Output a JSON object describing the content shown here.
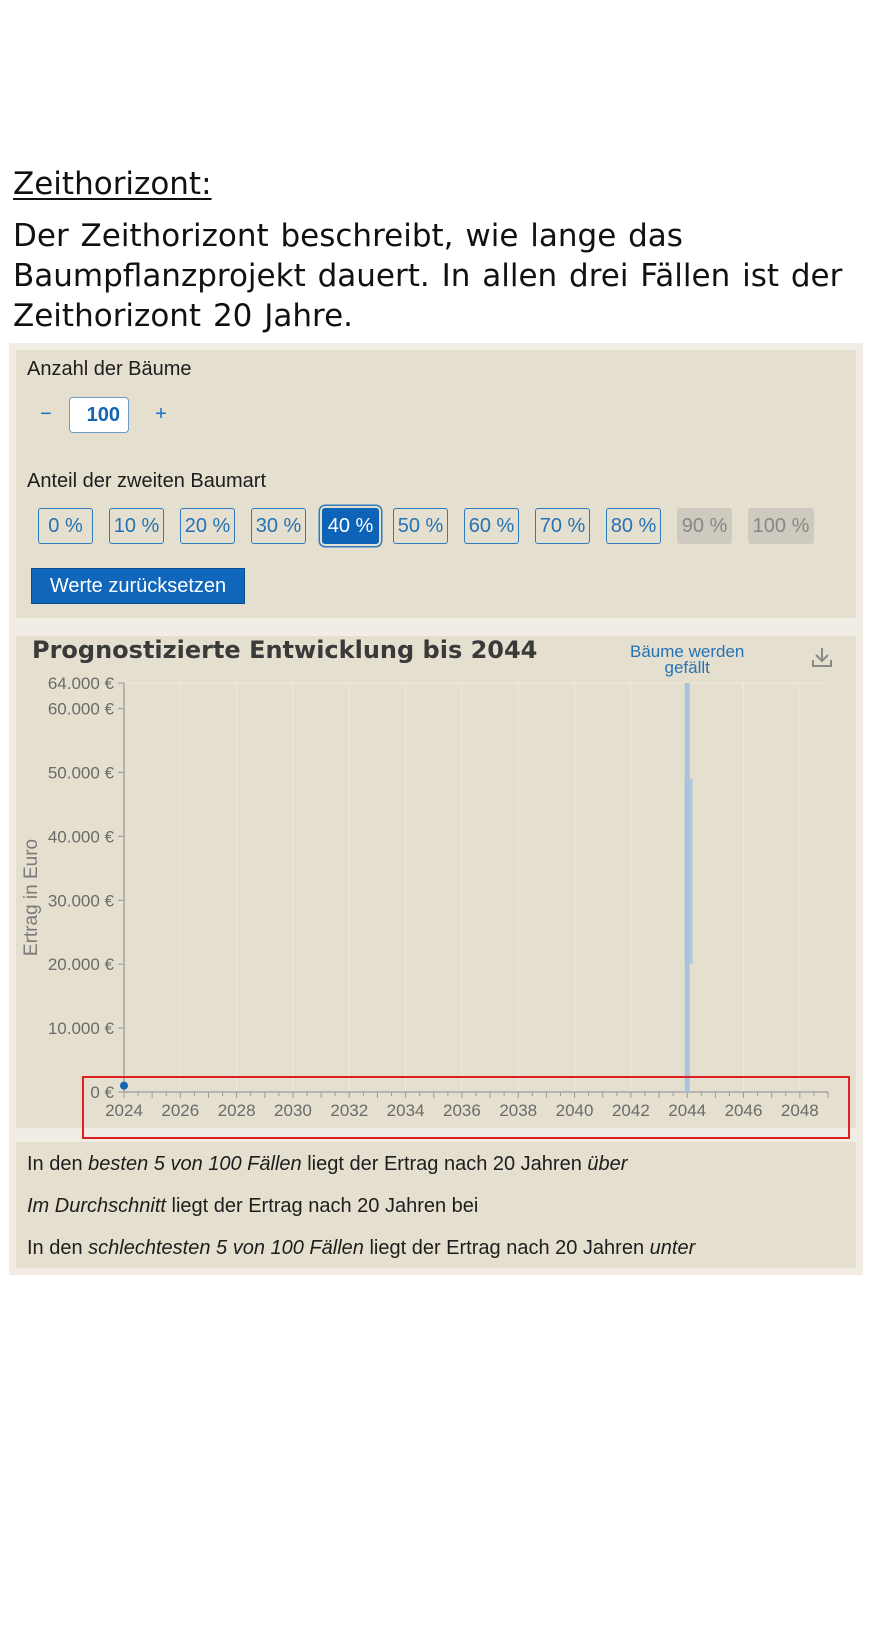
{
  "heading": "Zeithorizont:",
  "intro": "Der Zeithorizont beschreibt, wie lange das Baumpflanzprojekt dauert. In allen drei Fällen ist der Zeithorizont 20 Jahre.",
  "trees": {
    "label": "Anzahl der Bäume",
    "minus": "−",
    "plus": "+",
    "value": "100"
  },
  "share": {
    "label": "Anteil der zweiten Baumart",
    "options": [
      "0 %",
      "10 %",
      "20 %",
      "30 %",
      "40 %",
      "50 %",
      "60 %",
      "70 %",
      "80 %",
      "90 %",
      "100 %"
    ],
    "selected": "40 %",
    "disabled": [
      "90 %",
      "100 %"
    ]
  },
  "reset_label": "Werte zurücksetzen",
  "chart_data": {
    "type": "line",
    "title": "Prognostizierte Entwicklung bis 2044",
    "ylabel": "Ertrag in Euro",
    "xlabel": "",
    "xlim": [
      2024,
      2049
    ],
    "ylim": [
      0,
      64000
    ],
    "x_ticks": [
      "2024",
      "2026",
      "2028",
      "2030",
      "2032",
      "2034",
      "2036",
      "2038",
      "2040",
      "2042",
      "2044",
      "2046",
      "2048"
    ],
    "y_ticks": [
      "0 €",
      "10.000 €",
      "20.000 €",
      "30.000 €",
      "40.000 €",
      "50.000 €",
      "60.000 €",
      "64.000 €"
    ],
    "annotation": {
      "text_line1": "Bäume werden",
      "text_line2": "gefällt",
      "x": 2044
    },
    "start_point": {
      "x": 2024,
      "y": 1000
    },
    "harvest_band": {
      "x": 2044,
      "y_low": 0,
      "y_high": 64000
    },
    "grid": true,
    "colors": {
      "band": "#a8c4dc",
      "point": "#1565b3",
      "annotation": "#2672b5"
    }
  },
  "results": {
    "line1_a": "In den ",
    "line1_b": "besten 5 von 100 Fällen",
    "line1_c": " liegt der Ertrag nach 20 Jahren ",
    "line1_d": "über",
    "line2_a": "Im Durchschnitt",
    "line2_b": " liegt der Ertrag nach 20 Jahren bei",
    "line3_a": "In den ",
    "line3_b": "schlechtesten 5 von 100 Fällen",
    "line3_c": " liegt der Ertrag nach 20 Jahren ",
    "line3_d": "unter"
  }
}
